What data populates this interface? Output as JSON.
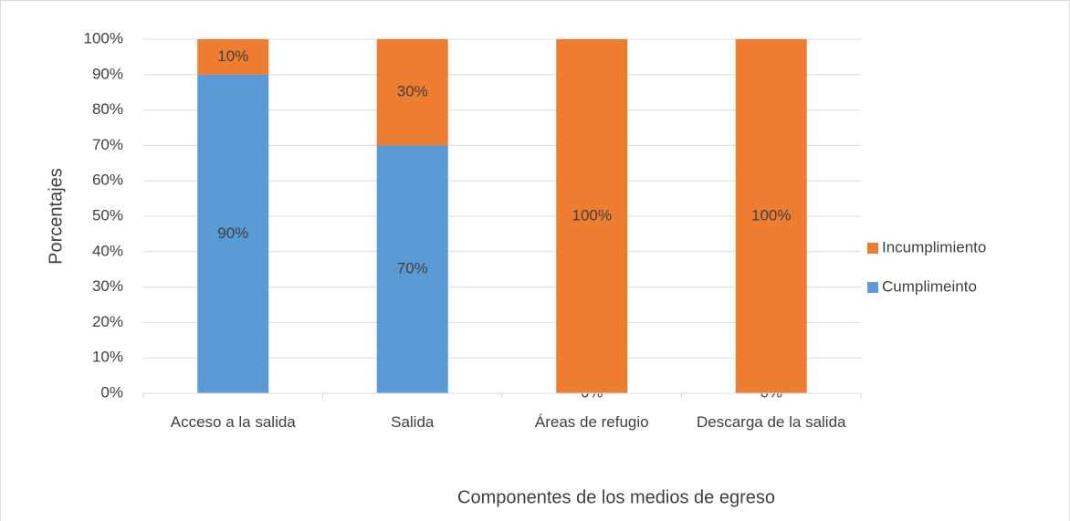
{
  "chart_data": {
    "type": "stacked_bar",
    "categories": [
      "Acceso a la salida",
      "Salida",
      "Áreas de refugio",
      "Descarga de la salida"
    ],
    "series": [
      {
        "name": "Cumplimeinto",
        "color": "#5b9bd5",
        "values": [
          90,
          70,
          0,
          0
        ],
        "value_labels": [
          "90%",
          "70%",
          "0%",
          "0%"
        ]
      },
      {
        "name": "Incumplimiento",
        "color": "#ed7d31",
        "values": [
          10,
          30,
          100,
          100
        ],
        "value_labels": [
          "10%",
          "30%",
          "100%",
          "100%"
        ]
      }
    ],
    "ylim": [
      0,
      100
    ],
    "yticks": [
      {
        "value": 0,
        "label": "0%"
      },
      {
        "value": 10,
        "label": "10%"
      },
      {
        "value": 20,
        "label": "20%"
      },
      {
        "value": 30,
        "label": "30%"
      },
      {
        "value": 40,
        "label": "40%"
      },
      {
        "value": 50,
        "label": "50%"
      },
      {
        "value": 60,
        "label": "60%"
      },
      {
        "value": 70,
        "label": "70%"
      },
      {
        "value": 80,
        "label": "80%"
      },
      {
        "value": 90,
        "label": "90%"
      },
      {
        "value": 100,
        "label": "100%"
      }
    ],
    "ylabel": "Porcentajes",
    "xlabel": "Componentes de los medios de egreso",
    "grid": true,
    "legend": "right"
  }
}
